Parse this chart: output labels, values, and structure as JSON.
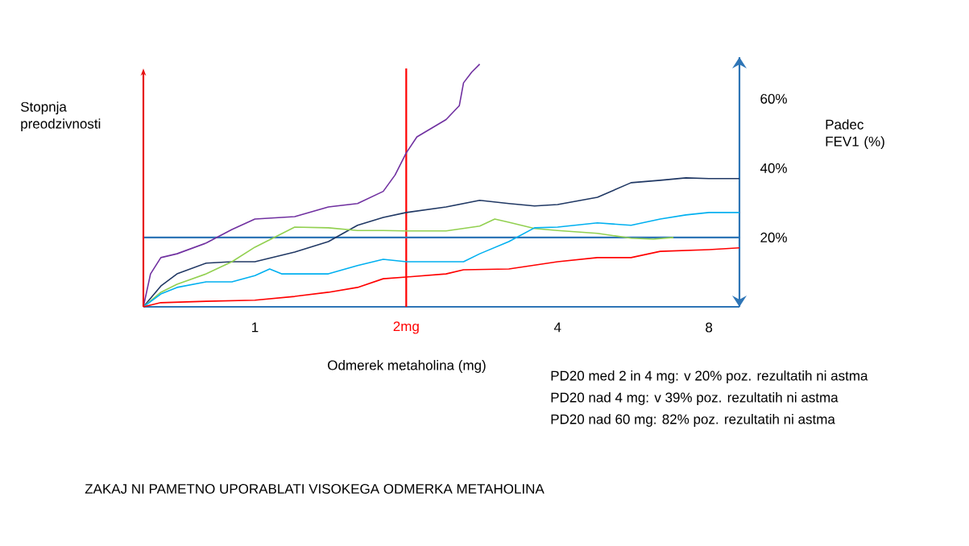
{
  "chart_data": {
    "type": "line",
    "title": "ZAKAJ NI PAMETNO UPORABLATI VISOKEGA ODMERKA METAHOLINA",
    "xlabel": "Odmerek metaholina (mg)",
    "annotations": [
      "Stopnja preodzivnosti",
      "Padec FEV1 (%)",
      "PD20 med 2 in 4 mg: v 20% poz. rezultatih ni astma",
      "PD20 nad 4 mg: v 39% poz. rezultatih ni astma",
      "PD20 nad 60 mg: 82% poz. rezultatih ni astma"
    ],
    "log": "x",
    "xlim": [
      0.6,
      9.2
    ],
    "xticks": [
      1,
      4,
      8
    ],
    "ylim": [
      0,
      72
    ],
    "yticks": [
      {
        "value": 20,
        "label": "20%"
      },
      {
        "value": 40,
        "label": "40%"
      },
      {
        "value": 60,
        "label": "60%"
      }
    ],
    "grid": false,
    "legend": false,
    "marker": "none",
    "line_style": "solid",
    "ref_lines": [
      {
        "axis": "x",
        "value": 2,
        "label": "2mg",
        "color": "#ff0000"
      },
      {
        "axis": "y",
        "value": 20,
        "label": null,
        "color": "#2e75b6"
      }
    ],
    "series": [
      {
        "color": "#7030a0",
        "x": [
          0.6,
          0.62,
          0.65,
          0.7,
          0.8,
          0.9,
          1,
          1.2,
          1.4,
          1.6,
          1.8,
          1.9,
          2,
          2.1,
          2.4,
          2.55,
          2.6,
          2.7,
          2.8
        ],
        "values": [
          0,
          9.5,
          14.2,
          15.3,
          18.4,
          22.3,
          25.3,
          26,
          28.8,
          29.8,
          33.3,
          38,
          44.4,
          49,
          54,
          58,
          64.6,
          67.7,
          70
        ]
      },
      {
        "color": "#203864",
        "x": [
          0.6,
          0.65,
          0.7,
          0.8,
          0.9,
          1,
          1.2,
          1.4,
          1.6,
          1.8,
          2,
          2.4,
          2.8,
          3.2,
          3.6,
          4,
          4.8,
          5.6,
          6.4,
          7.2,
          8,
          9.2
        ],
        "values": [
          0,
          6,
          9.5,
          12.6,
          13,
          13,
          15.8,
          18.8,
          23.5,
          25.8,
          27.2,
          28.8,
          30.7,
          29.8,
          29.1,
          29.5,
          31.6,
          35.8,
          36.5,
          37.2,
          37,
          37
        ]
      },
      {
        "color": "#92d050",
        "x": [
          0.6,
          0.65,
          0.7,
          0.8,
          0.9,
          1,
          1.2,
          1.4,
          1.6,
          1.8,
          2,
          2.4,
          2.8,
          3,
          3.2,
          3.6,
          4,
          4.8,
          5.6,
          6.2,
          6.8
        ],
        "values": [
          0,
          4.2,
          6.5,
          9.5,
          13,
          17.2,
          23,
          22.8,
          22,
          22,
          21.9,
          21.9,
          23.3,
          25.3,
          24.4,
          22.6,
          22,
          21.2,
          19.8,
          19.5,
          20
        ]
      },
      {
        "color": "#00b0f0",
        "x": [
          0.6,
          0.65,
          0.7,
          0.8,
          0.9,
          1,
          1.07,
          1.13,
          1.4,
          1.6,
          1.8,
          2,
          2.4,
          2.6,
          2.8,
          3.2,
          3.6,
          4,
          4.8,
          5.6,
          6.4,
          7.2,
          8,
          9.2
        ],
        "values": [
          0,
          3.7,
          5.6,
          7.2,
          7.2,
          9,
          10.9,
          9.5,
          9.5,
          11.9,
          13.7,
          13,
          13,
          13,
          15.3,
          18.8,
          22.8,
          23,
          24.2,
          23.5,
          25.3,
          26.5,
          27.2,
          27.2
        ]
      },
      {
        "color": "#ff0000",
        "x": [
          0.6,
          0.65,
          0.8,
          1,
          1.2,
          1.4,
          1.6,
          1.8,
          2,
          2.4,
          2.6,
          3.2,
          4,
          4.8,
          5.6,
          6.4,
          8,
          9.2
        ],
        "values": [
          0,
          1.2,
          1.6,
          1.9,
          3,
          4.2,
          5.6,
          8.1,
          8.6,
          9.5,
          10.7,
          10.9,
          13,
          14.2,
          14.2,
          16,
          16.5,
          17
        ]
      }
    ]
  }
}
